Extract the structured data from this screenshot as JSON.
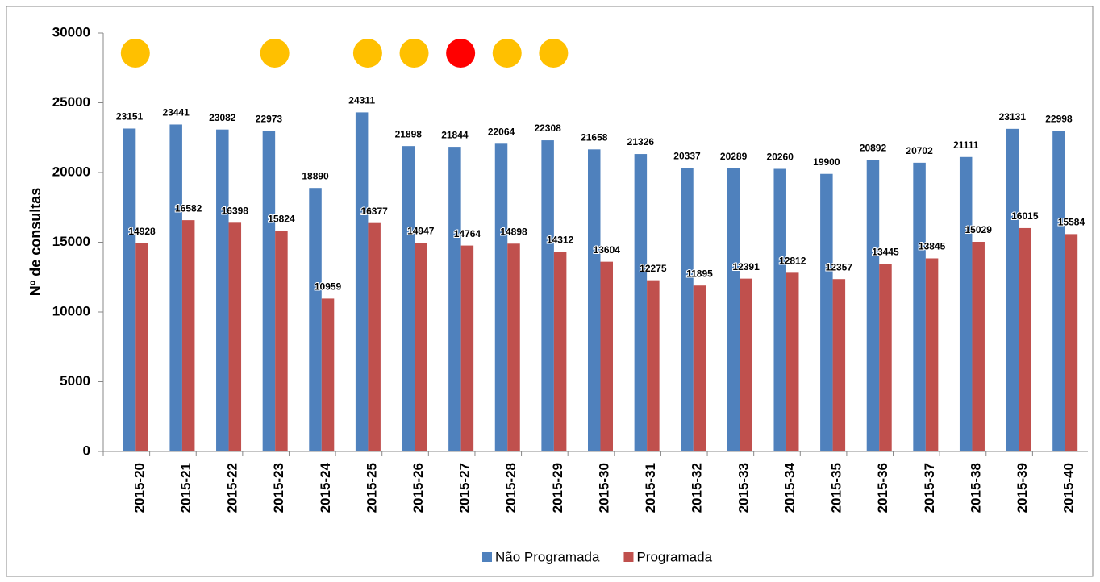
{
  "chart_data": {
    "type": "bar",
    "y_label": "Nº de consultas",
    "categories": [
      "2015-20",
      "2015-21",
      "2015-22",
      "2015-23",
      "2015-24",
      "2015-25",
      "2015-26",
      "2015-27",
      "2015-28",
      "2015-29",
      "2015-30",
      "2015-31",
      "2015-32",
      "2015-33",
      "2015-34",
      "2015-35",
      "2015-36",
      "2015-37",
      "2015-38",
      "2015-39",
      "2015-40"
    ],
    "series": [
      {
        "name": "Não Programada",
        "color": "#4f81bd",
        "values": [
          23151,
          23441,
          23082,
          22973,
          18890,
          24311,
          21898,
          21844,
          22064,
          22308,
          21658,
          21326,
          20337,
          20289,
          20260,
          19900,
          20892,
          20702,
          21111,
          23131,
          22998
        ]
      },
      {
        "name": "Programada",
        "color": "#c0504d",
        "values": [
          14928,
          16582,
          16398,
          15824,
          10959,
          16377,
          14947,
          14764,
          14898,
          14312,
          13604,
          12275,
          11895,
          12391,
          12812,
          12357,
          13445,
          13845,
          15029,
          16015,
          15584
        ]
      }
    ],
    "marker_colors": [
      "#ffc000",
      null,
      null,
      "#ffc000",
      null,
      "#ffc000",
      "#ffc000",
      "#ff0000",
      "#ffc000",
      "#ffc000",
      null,
      null,
      null,
      null,
      null,
      null,
      null,
      null,
      null,
      null,
      null
    ],
    "ylim": [
      0,
      30000
    ],
    "yticks": [
      0,
      5000,
      10000,
      15000,
      20000,
      25000,
      30000
    ],
    "grid": false,
    "legend": "bottom"
  }
}
